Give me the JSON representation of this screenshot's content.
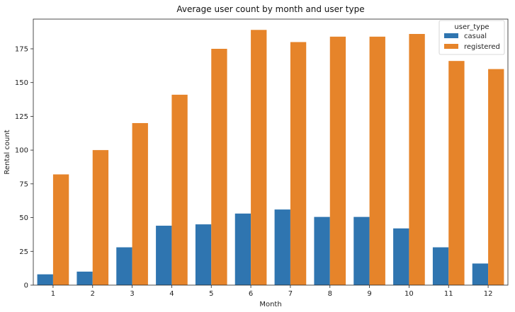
{
  "chart_data": {
    "type": "bar",
    "title": "Average user count by month and user type",
    "xlabel": "Month",
    "ylabel": "Rental count",
    "categories": [
      "1",
      "2",
      "3",
      "4",
      "5",
      "6",
      "7",
      "8",
      "9",
      "10",
      "11",
      "12"
    ],
    "series": [
      {
        "name": "casual",
        "color": "#2f75b0",
        "values": [
          8,
          10,
          28,
          44,
          45,
          53,
          56,
          50.5,
          50.5,
          42,
          28,
          16
        ]
      },
      {
        "name": "registered",
        "color": "#e6842a",
        "values": [
          82,
          100,
          120,
          141,
          175,
          189,
          180,
          184,
          184,
          186,
          166,
          160
        ]
      }
    ],
    "ylim": [
      0,
      197
    ],
    "yticks": [
      0,
      25,
      50,
      75,
      100,
      125,
      150,
      175
    ],
    "grid": false,
    "legend": {
      "title": "user_type",
      "placement": "top-right"
    }
  }
}
